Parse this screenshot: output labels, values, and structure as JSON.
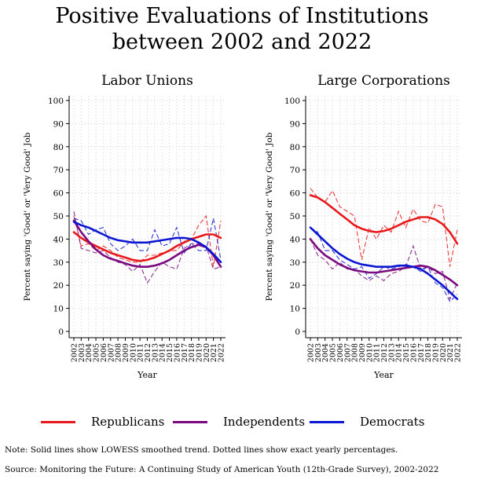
{
  "title": {
    "line1": "Positive Evaluations of Institutions",
    "line2": "between 2002 and 2022"
  },
  "legend": [
    {
      "label": "Republicans",
      "color": "#e8191c"
    },
    {
      "label": "Independents",
      "color": "#7b0a80"
    },
    {
      "label": "Democrats",
      "color": "#0c17d2"
    }
  ],
  "note": "Note: Solid lines show LOWESS smoothed trend. Dotted lines show exact yearly percentages.",
  "source": "Source: Monitoring the Future: A Continuing Study of American Youth (12th-Grade Survey), 2002-2022",
  "chart_data": [
    {
      "type": "line",
      "title": "Labor Unions",
      "xlabel": "Year",
      "ylabel": "Percent saying 'Good' or 'Very Good' Job",
      "ylim": [
        0,
        100
      ],
      "yticks": [
        0,
        10,
        20,
        30,
        40,
        50,
        60,
        70,
        80,
        90,
        100
      ],
      "x": [
        2002,
        2003,
        2004,
        2005,
        2006,
        2007,
        2008,
        2009,
        2010,
        2011,
        2012,
        2013,
        2014,
        2015,
        2016,
        2017,
        2018,
        2019,
        2020,
        2021,
        2022
      ],
      "grid": true,
      "series": [
        {
          "name": "Republicans",
          "color": "#e8191c",
          "kind": "yearly",
          "values": [
            50,
            37,
            38,
            35,
            37,
            35,
            32,
            31,
            30,
            30,
            33,
            33,
            34,
            35,
            35,
            39,
            40,
            46,
            50,
            28,
            48
          ]
        },
        {
          "name": "Republicans",
          "color": "#e8191c",
          "kind": "smoothed",
          "values": [
            43,
            40.5,
            38.5,
            37,
            35.5,
            34,
            33,
            32,
            31,
            30.5,
            31,
            32,
            33.5,
            35,
            37,
            38.5,
            40,
            41,
            42,
            42,
            40.5
          ]
        },
        {
          "name": "Independents",
          "color": "#7b0a80",
          "kind": "yearly",
          "values": [
            52,
            36,
            35,
            34,
            35,
            32,
            30,
            29,
            26,
            29,
            21,
            26,
            30,
            28,
            27,
            36,
            38,
            38,
            37,
            27,
            28
          ]
        },
        {
          "name": "Independents",
          "color": "#7b0a80",
          "kind": "smoothed",
          "values": [
            48,
            43,
            39,
            35.5,
            33,
            31.5,
            30.5,
            29.5,
            28.5,
            28,
            28,
            28.5,
            29.5,
            31,
            33,
            35,
            36.5,
            37.5,
            36.5,
            33,
            28
          ]
        },
        {
          "name": "Democrats",
          "color": "#0c17d2",
          "kind": "yearly",
          "values": [
            49,
            48,
            42,
            44,
            45,
            38,
            35,
            37,
            40,
            35,
            35,
            44,
            37,
            38,
            45,
            34,
            38,
            35,
            35,
            49,
            31
          ]
        },
        {
          "name": "Democrats",
          "color": "#0c17d2",
          "kind": "smoothed",
          "values": [
            47.5,
            46,
            45,
            43.5,
            42,
            40.5,
            39.5,
            39,
            38.5,
            38.5,
            38.5,
            39,
            39.5,
            40,
            40.5,
            40.5,
            40,
            38.5,
            36.5,
            33.5,
            30
          ]
        }
      ]
    },
    {
      "type": "line",
      "title": "Large Corporations",
      "xlabel": "Year",
      "ylabel": "Percent saying 'Good' or 'Very Good' Job",
      "ylim": [
        0,
        100
      ],
      "yticks": [
        0,
        10,
        20,
        30,
        40,
        50,
        60,
        70,
        80,
        90,
        100
      ],
      "x": [
        2002,
        2003,
        2004,
        2005,
        2006,
        2007,
        2008,
        2009,
        2010,
        2011,
        2012,
        2013,
        2014,
        2015,
        2016,
        2017,
        2018,
        2019,
        2020,
        2021,
        2022
      ],
      "grid": true,
      "series": [
        {
          "name": "Republicans",
          "color": "#e8191c",
          "kind": "yearly",
          "values": [
            62,
            58,
            56,
            61,
            54,
            52,
            50,
            31,
            45,
            40,
            46,
            43,
            52,
            45,
            53,
            48,
            47,
            55,
            54,
            28,
            44
          ]
        },
        {
          "name": "Republicans",
          "color": "#e8191c",
          "kind": "smoothed",
          "values": [
            59,
            58,
            56,
            53.5,
            51,
            48.5,
            46,
            44.5,
            43.5,
            43,
            43.5,
            44.5,
            46,
            47.5,
            48.5,
            49.5,
            49.5,
            48.5,
            46.5,
            43,
            38
          ]
        },
        {
          "name": "Independents",
          "color": "#7b0a80",
          "kind": "yearly",
          "values": [
            40,
            33,
            31,
            27,
            30,
            27,
            27,
            24,
            22,
            24,
            22,
            25,
            26,
            28,
            37,
            27,
            28,
            25,
            26,
            14,
            21
          ]
        },
        {
          "name": "Independents",
          "color": "#7b0a80",
          "kind": "smoothed",
          "values": [
            40,
            36,
            33,
            31,
            29,
            27.5,
            26.5,
            26,
            25.5,
            25.5,
            26,
            26.5,
            27,
            27.5,
            28,
            28.5,
            28,
            26.5,
            24.5,
            22.5,
            20
          ]
        },
        {
          "name": "Democrats",
          "color": "#0c17d2",
          "kind": "yearly",
          "values": [
            45,
            43,
            35,
            35,
            31,
            29,
            27,
            28,
            23,
            25,
            28,
            27,
            28,
            29,
            28,
            26,
            28,
            21,
            19,
            13,
            16
          ]
        },
        {
          "name": "Democrats",
          "color": "#0c17d2",
          "kind": "smoothed",
          "values": [
            45,
            42,
            39,
            36,
            33.5,
            31.5,
            30,
            29,
            28.5,
            28,
            28,
            28,
            28.5,
            28.5,
            28,
            27,
            25,
            22.5,
            20,
            17,
            14
          ]
        }
      ]
    }
  ]
}
